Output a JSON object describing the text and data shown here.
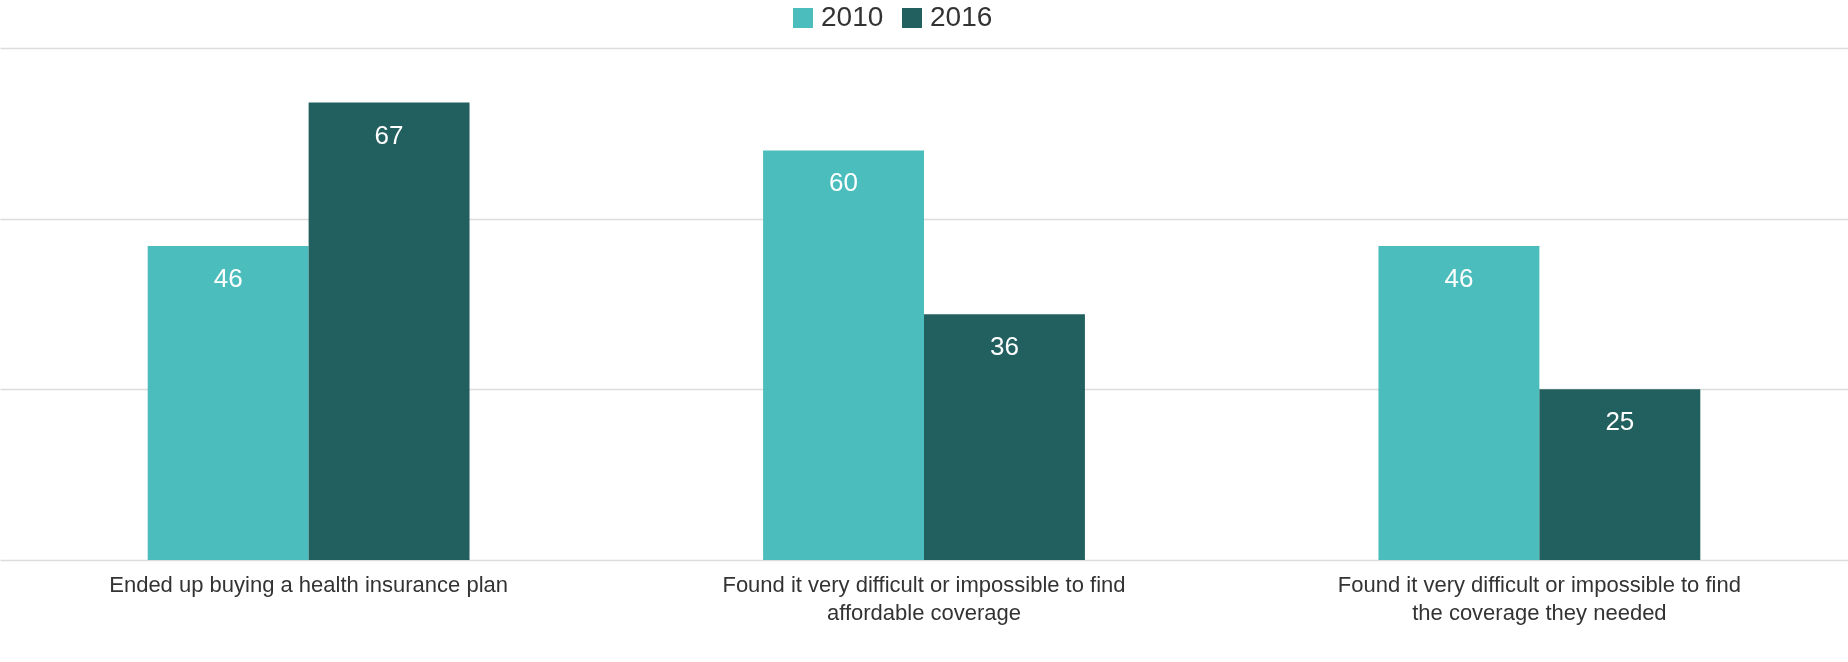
{
  "chart_data": {
    "type": "bar",
    "categories": [
      "Ended up buying a health insurance plan",
      "Found it very difficult or impossible to find affordable coverage",
      "Found it very difficult or impossible to find the coverage they needed"
    ],
    "series": [
      {
        "name": "2010",
        "color": "#4cbdbd",
        "values": [
          46,
          60,
          46
        ]
      },
      {
        "name": "2016",
        "color": "#22605f",
        "values": [
          67,
          36,
          25
        ]
      }
    ],
    "ylim": [
      0,
      75
    ],
    "yticks": [
      {
        "value": 0,
        "label": null
      },
      {
        "value": 25,
        "label": null
      },
      {
        "value": 50,
        "label": null
      },
      {
        "value": 75,
        "label": null
      }
    ],
    "grid": "y",
    "legend": "top",
    "data_labels": true,
    "tick_labels": "x"
  }
}
